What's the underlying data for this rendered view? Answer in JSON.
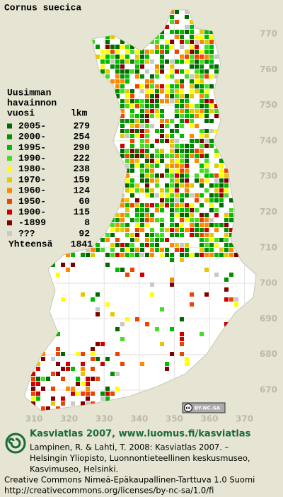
{
  "title": "Cornus suecica",
  "legend": {
    "heading": [
      "Uusimman",
      "havainnon",
      "vuosi"
    ],
    "count_heading": "lkm",
    "rows": [
      {
        "period": "2005-",
        "count": 279,
        "color": "#006a00"
      },
      {
        "period": "2000-",
        "count": 254,
        "color": "#009000"
      },
      {
        "period": "1995-",
        "count": 290,
        "color": "#00bb00"
      },
      {
        "period": "1990-",
        "count": 222,
        "color": "#44dd22"
      },
      {
        "period": "1980-",
        "count": 238,
        "color": "#ffff00"
      },
      {
        "period": "1970-",
        "count": 159,
        "color": "#e6c800"
      },
      {
        "period": "1960-",
        "count": 124,
        "color": "#ff8800"
      },
      {
        "period": "1950-",
        "count": 60,
        "color": "#ee4400"
      },
      {
        "period": "1900-",
        "count": 115,
        "color": "#cc0000"
      },
      {
        "period": "-1899",
        "count": 8,
        "color": "#800000"
      },
      {
        "period": "???",
        "count": 92,
        "color": "#c8c8c8"
      }
    ],
    "total_label": "Yhteensä",
    "total": 1841
  },
  "grid": {
    "northing_labels": [
      770,
      760,
      750,
      740,
      730,
      720,
      710,
      700,
      690,
      680,
      670
    ],
    "easting_labels": [
      310,
      320,
      330,
      340,
      350,
      360,
      370
    ]
  },
  "license_badge": "BY-NC-SA",
  "footer": {
    "headline": "Kasviatlas 2007, www.luomus.fi/kasviatlas",
    "citation": [
      "Lampinen, R. & Lahti, T. 2008: Kasviatlas 2007. –",
      "Helsingin Yliopisto, Luonnontieteellinen keskusmuseo,",
      "Kasvimuseo, Helsinki."
    ],
    "license": [
      "Creative Commons Nimeä-Epäkaupallinen-Tarttuva 1.0 Suomi",
      "http://creativecommons.org/licenses/by-nc-sa/1.0/fi"
    ]
  }
}
